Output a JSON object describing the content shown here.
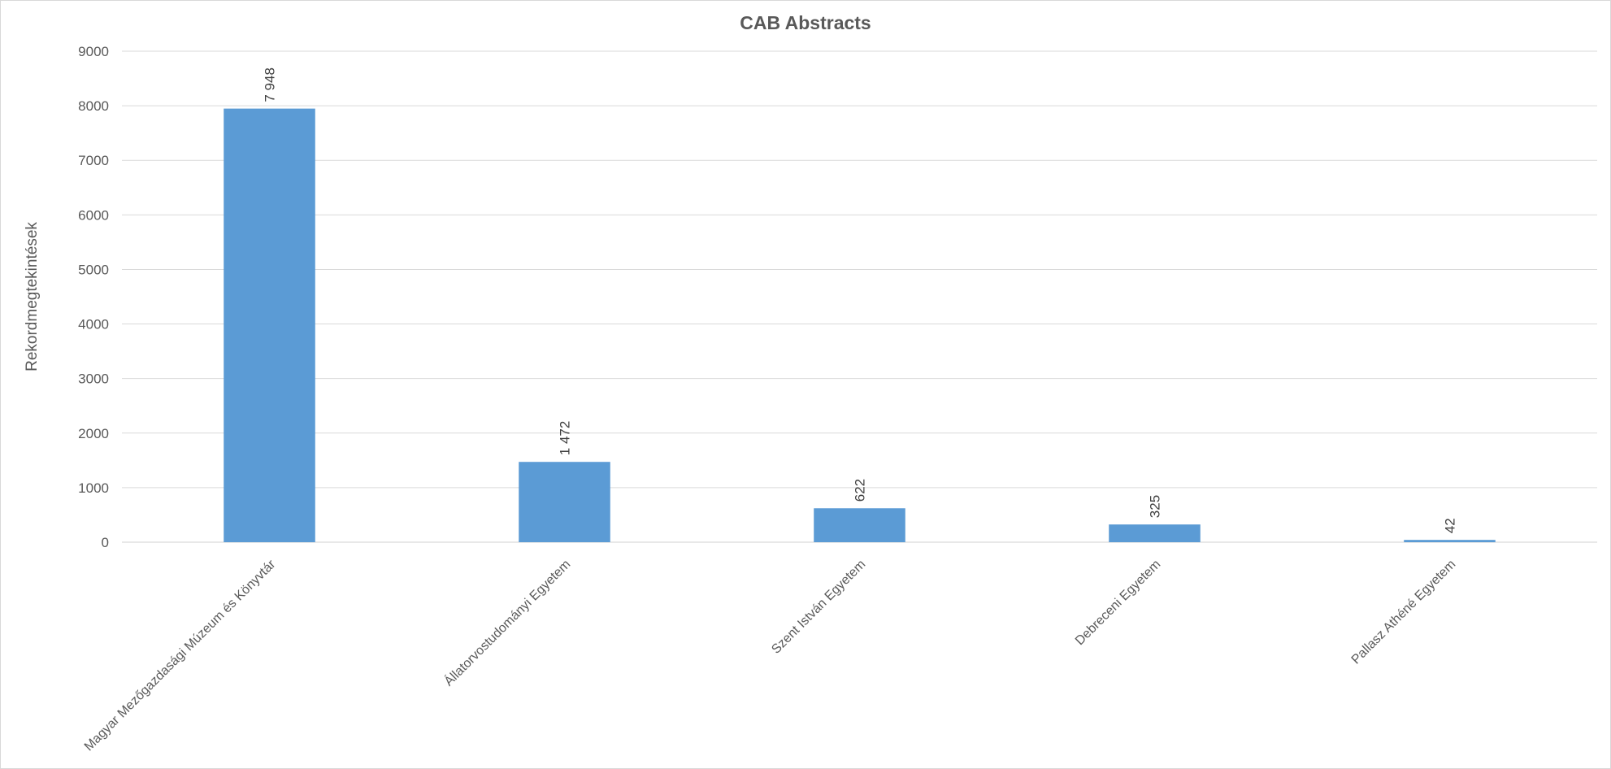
{
  "chart_data": {
    "type": "bar",
    "title": "CAB Abstracts",
    "ylabel": "Rekordmegtekintések",
    "xlabel": "",
    "ylim": [
      0,
      9000
    ],
    "yticks": [
      0,
      1000,
      2000,
      3000,
      4000,
      5000,
      6000,
      7000,
      8000,
      9000
    ],
    "grid": true,
    "categories": [
      "Magyar Mezőgazdasági Múzeum és Könyvtár",
      "Állatorvostudományi Egyetem",
      "Szent István Egyetem",
      "Debreceni Egyetem",
      "Pallasz Athéné Egyetem"
    ],
    "values": [
      7948,
      1472,
      622,
      325,
      42
    ],
    "data_labels": [
      "7 948",
      "1 472",
      "622",
      "325",
      "42"
    ],
    "bar_color": "#5b9bd5"
  }
}
